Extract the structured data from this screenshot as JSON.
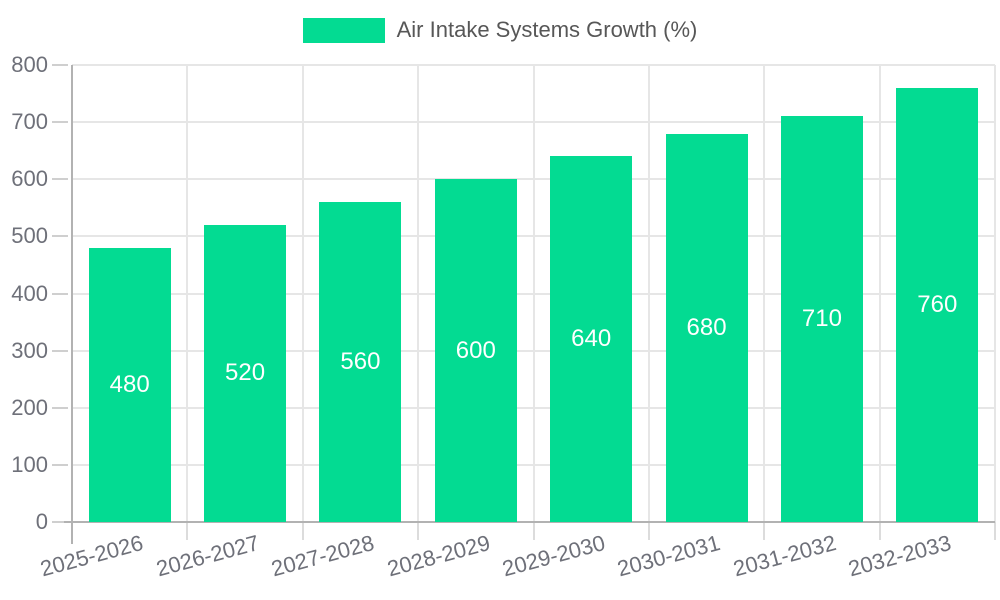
{
  "chart_data": {
    "type": "bar",
    "title": "Air Intake Systems Growth (%)",
    "series_name": "Air Intake Systems Growth (%)",
    "categories": [
      "2025-2026",
      "2026-2027",
      "2027-2028",
      "2028-2029",
      "2029-2030",
      "2030-2031",
      "2031-2032",
      "2032-2033"
    ],
    "values": [
      480,
      520,
      560,
      600,
      640,
      680,
      710,
      760
    ],
    "xlabel": "",
    "ylabel": "",
    "ylim": [
      0,
      800
    ],
    "ytick_interval": 100,
    "yticks": [
      "0",
      "100",
      "200",
      "300",
      "400",
      "500",
      "600",
      "700",
      "800"
    ],
    "grid": true,
    "legend_position": "top",
    "bar_color": "#03db92",
    "bar_value_label_color": "#ffffff",
    "axis_label_color": "#6e7079",
    "grid_color": "#e6e6e6",
    "axis_line_color": "#b2b2b2",
    "legend_text_color": "#575757",
    "background_color": "#ffffff"
  }
}
